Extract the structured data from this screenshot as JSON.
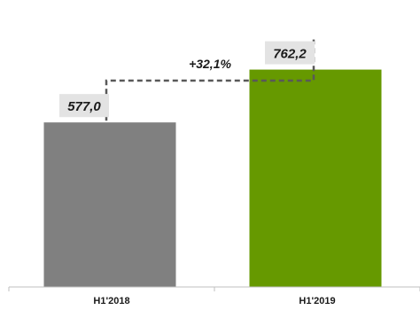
{
  "chart_data": {
    "type": "bar",
    "categories": [
      "H1'2018",
      "H1'2019"
    ],
    "values": [
      577.0,
      762.2
    ],
    "value_labels": [
      "577,0",
      "762,2"
    ],
    "colors": [
      "#808080",
      "#669900"
    ],
    "growth_label": "+32,1%",
    "title": "",
    "xlabel": "",
    "ylabel": "",
    "ylim": [
      0,
      1000
    ],
    "grid": false,
    "legend": "none"
  }
}
